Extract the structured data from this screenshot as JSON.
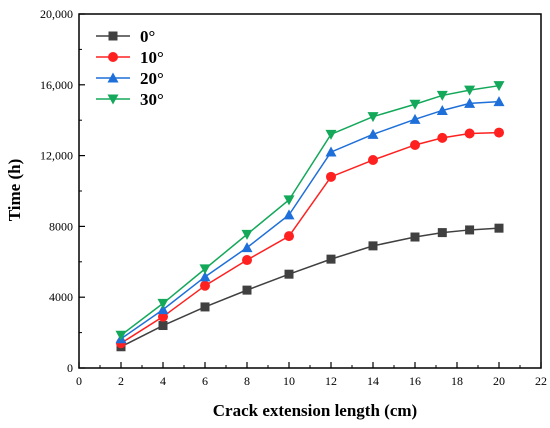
{
  "chart_data": {
    "type": "line",
    "xlabel": "Crack extension length (cm)",
    "ylabel": "Time (h)",
    "xlim": [
      0,
      22
    ],
    "ylim": [
      0,
      20000
    ],
    "xticks": [
      0,
      2,
      4,
      6,
      8,
      10,
      12,
      14,
      16,
      18,
      20,
      22
    ],
    "yticks": [
      0,
      4000,
      8000,
      12000,
      16000,
      20000
    ],
    "ytick_labels": [
      "0",
      "4000",
      "8000",
      "12,000",
      "16,000",
      "20,000"
    ],
    "xtick_labels": [
      "0",
      "2",
      "4",
      "6",
      "8",
      "10",
      "12",
      "14",
      "16",
      "18",
      "20",
      "22"
    ],
    "grid": false,
    "legend_position": "top-left",
    "x": [
      2,
      4,
      6,
      8,
      10,
      12,
      14,
      16,
      17.3,
      18.6,
      20
    ],
    "series": [
      {
        "name": "0°",
        "color": "#404040",
        "marker": "square",
        "values": [
          1200,
          2400,
          3450,
          4400,
          5300,
          6150,
          6900,
          7400,
          7650,
          7800,
          7900
        ]
      },
      {
        "name": "10°",
        "color": "#ff2020",
        "marker": "circle",
        "values": [
          1400,
          2900,
          4650,
          6100,
          7450,
          10800,
          11750,
          12600,
          13000,
          13250,
          13300
        ]
      },
      {
        "name": "20°",
        "color": "#1e6fd9",
        "marker": "triangle-up",
        "values": [
          1650,
          3300,
          5150,
          6800,
          8650,
          12200,
          13200,
          14050,
          14550,
          14950,
          15050
        ]
      },
      {
        "name": "30°",
        "color": "#13a85a",
        "marker": "triangle-down",
        "values": [
          1850,
          3650,
          5600,
          7550,
          9500,
          13200,
          14200,
          14900,
          15400,
          15700,
          15950
        ]
      }
    ]
  }
}
